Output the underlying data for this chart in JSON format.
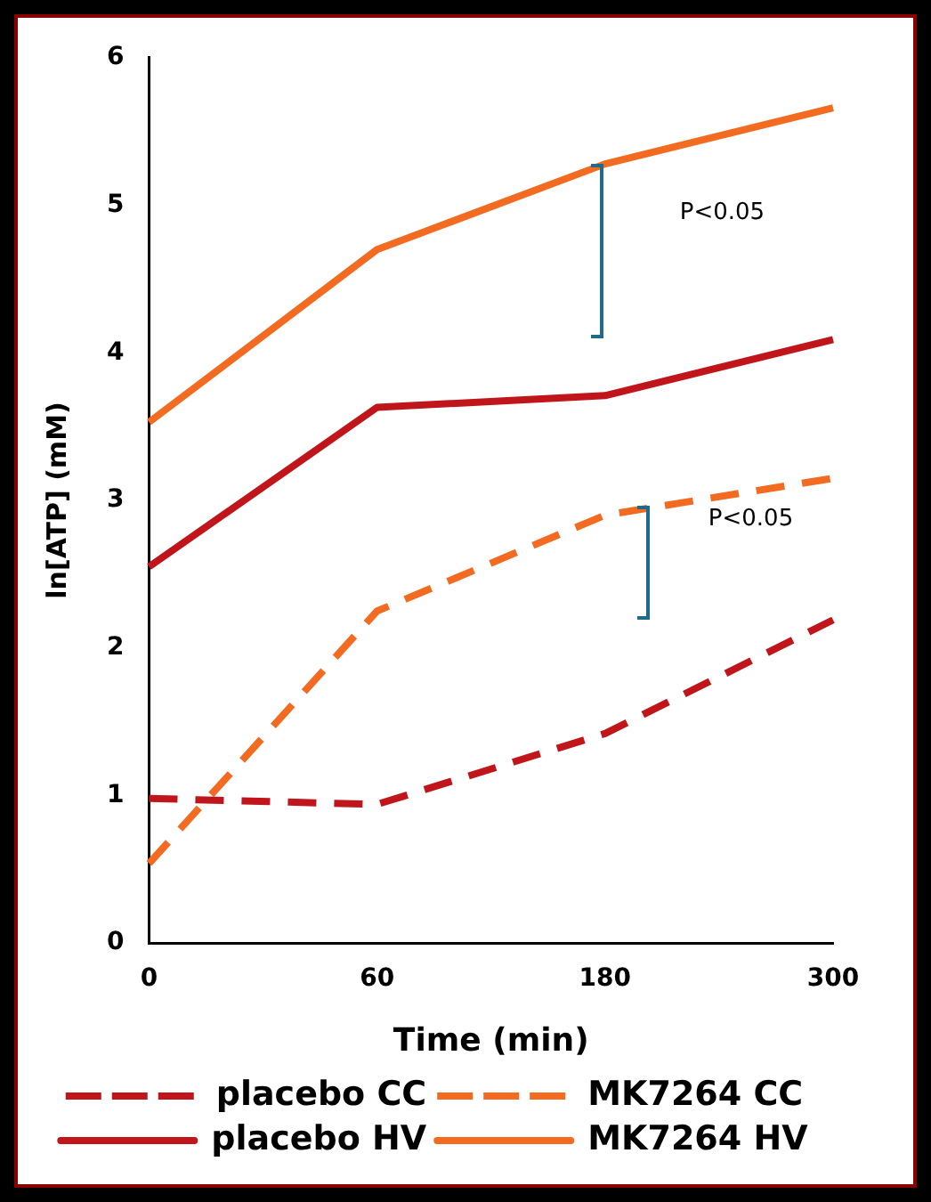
{
  "chart_data": {
    "type": "line",
    "xlabel": "Time (min)",
    "ylabel": "ln[ATP] (mM)",
    "categories": [
      "0",
      "60",
      "180",
      "300"
    ],
    "ylim": [
      0,
      6
    ],
    "yticks": [
      0,
      1,
      2,
      3,
      4,
      5,
      6
    ],
    "grid": false,
    "legend": "bottom",
    "marker": "none",
    "series": [
      {
        "name": "placebo CC",
        "color": "#c0161b",
        "line_style": "dashed",
        "values": [
          0.98,
          0.94,
          1.42,
          2.19
        ]
      },
      {
        "name": "MK7264 CC",
        "color": "#f26b21",
        "line_style": "dashed",
        "values": [
          0.54,
          2.25,
          2.9,
          3.15
        ]
      },
      {
        "name": "placebo HV",
        "color": "#c0161b",
        "line_style": "solid",
        "values": [
          2.55,
          3.63,
          3.71,
          4.09
        ]
      },
      {
        "name": "MK7264 HV",
        "color": "#f26b21",
        "line_style": "solid",
        "values": [
          3.53,
          4.7,
          5.28,
          5.66
        ]
      }
    ],
    "annotations": [
      "P<0.05",
      "P<0.05"
    ]
  }
}
